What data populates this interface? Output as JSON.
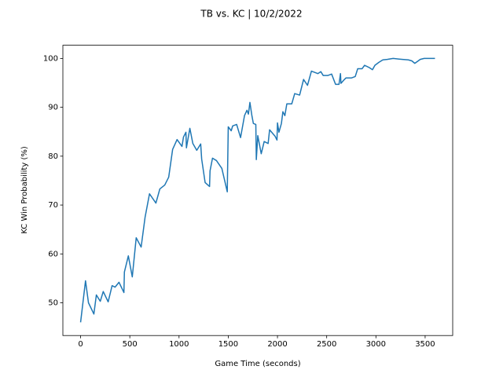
{
  "chart_data": {
    "type": "line",
    "title": "TB vs. KC | 10/2/2022",
    "x_label": "Game Time (seconds)",
    "y_label": "KC Win Probability (%)",
    "x": [
      0,
      50,
      80,
      135,
      160,
      200,
      230,
      280,
      320,
      350,
      390,
      440,
      445,
      485,
      525,
      565,
      615,
      655,
      700,
      765,
      805,
      855,
      895,
      935,
      980,
      1030,
      1045,
      1070,
      1075,
      1110,
      1140,
      1180,
      1220,
      1230,
      1265,
      1310,
      1315,
      1340,
      1380,
      1435,
      1490,
      1500,
      1530,
      1545,
      1585,
      1625,
      1665,
      1690,
      1705,
      1720,
      1740,
      1755,
      1780,
      1785,
      1800,
      1835,
      1865,
      1905,
      1920,
      1975,
      1995,
      2000,
      2015,
      2040,
      2055,
      2075,
      2095,
      2145,
      2175,
      2225,
      2265,
      2305,
      2345,
      2410,
      2440,
      2465,
      2510,
      2550,
      2590,
      2625,
      2640,
      2645,
      2680,
      2695,
      2750,
      2790,
      2815,
      2860,
      2885,
      2935,
      2965,
      2990,
      3030,
      3070,
      3115,
      3175,
      3270,
      3330,
      3365,
      3395,
      3430,
      3450,
      3490,
      3600
    ],
    "series": [
      {
        "name": "KC",
        "color": "#1f77b4",
        "values": [
          46.0,
          54.5,
          50.0,
          47.7,
          51.6,
          50.3,
          52.3,
          50.2,
          53.5,
          53.2,
          54.2,
          52.1,
          56.3,
          59.6,
          55.3,
          63.3,
          61.4,
          67.5,
          72.3,
          70.4,
          73.3,
          74.1,
          75.7,
          81.4,
          83.4,
          82.0,
          83.9,
          84.9,
          81.7,
          85.7,
          82.6,
          81.2,
          82.5,
          79.4,
          74.6,
          73.8,
          77.0,
          79.6,
          79.1,
          77.5,
          72.7,
          86.0,
          85.2,
          86.2,
          86.5,
          83.8,
          88.3,
          89.4,
          88.6,
          91.0,
          88.3,
          86.7,
          86.5,
          79.3,
          84.2,
          80.5,
          83.0,
          82.6,
          85.4,
          84.1,
          83.3,
          86.8,
          84.9,
          86.7,
          89.1,
          88.3,
          90.7,
          90.7,
          92.8,
          92.5,
          95.7,
          94.5,
          97.4,
          96.9,
          97.3,
          96.5,
          96.5,
          96.8,
          94.7,
          94.7,
          96.9,
          94.9,
          95.7,
          96.0,
          96.0,
          96.3,
          97.9,
          97.9,
          98.6,
          98.1,
          97.7,
          98.6,
          99.2,
          99.7,
          99.8,
          100.0,
          99.8,
          99.7,
          99.5,
          99.0,
          99.5,
          99.8,
          100.0,
          100.0
        ]
      }
    ],
    "xlim": [
      -180,
      3780
    ],
    "ylim": [
      43.3,
      102.7
    ],
    "xticks": [
      0,
      500,
      1000,
      1500,
      2000,
      2500,
      3000,
      3500
    ],
    "yticks": [
      50,
      60,
      70,
      80,
      90,
      100
    ]
  }
}
